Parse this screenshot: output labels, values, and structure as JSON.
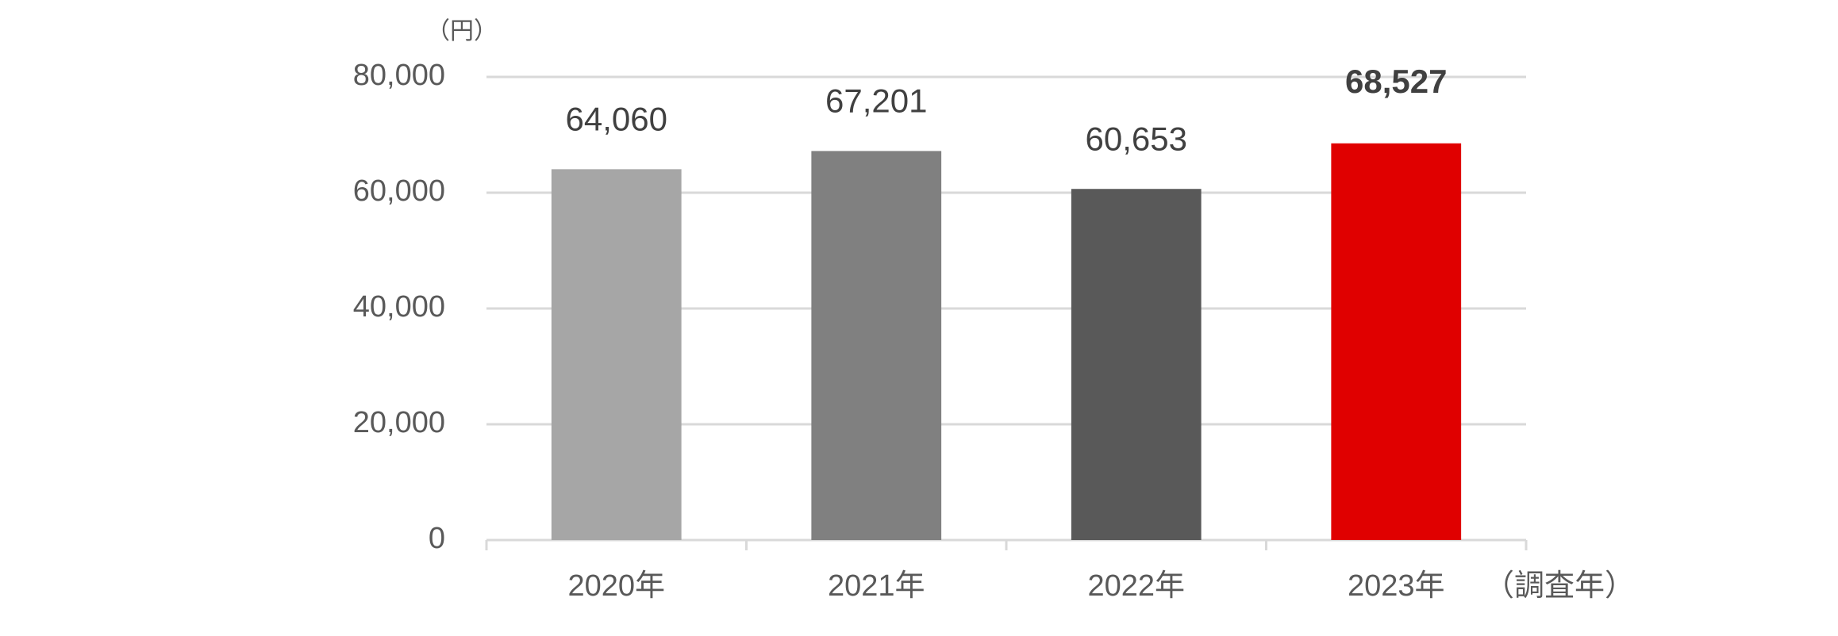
{
  "chart_data": {
    "type": "bar",
    "y_label": "（円）",
    "x_label": "（調査年）",
    "categories": [
      "2020年",
      "2021年",
      "2022年",
      "2023年"
    ],
    "values": [
      64060,
      67201,
      60653,
      68527
    ],
    "value_labels": [
      "64,060",
      "67,201",
      "60,653",
      "68,527"
    ],
    "colors": [
      "#a6a6a6",
      "#808080",
      "#595959",
      "#e00000"
    ],
    "ylim": [
      0,
      80000
    ],
    "yticks": [
      0,
      {
        "value": 20000,
        "label": "20,000"
      },
      {
        "value": 40000,
        "label": "40,000"
      },
      {
        "value": 60000,
        "label": "60,000"
      },
      {
        "value": 80000,
        "label": "80,000"
      }
    ],
    "grid": true
  }
}
